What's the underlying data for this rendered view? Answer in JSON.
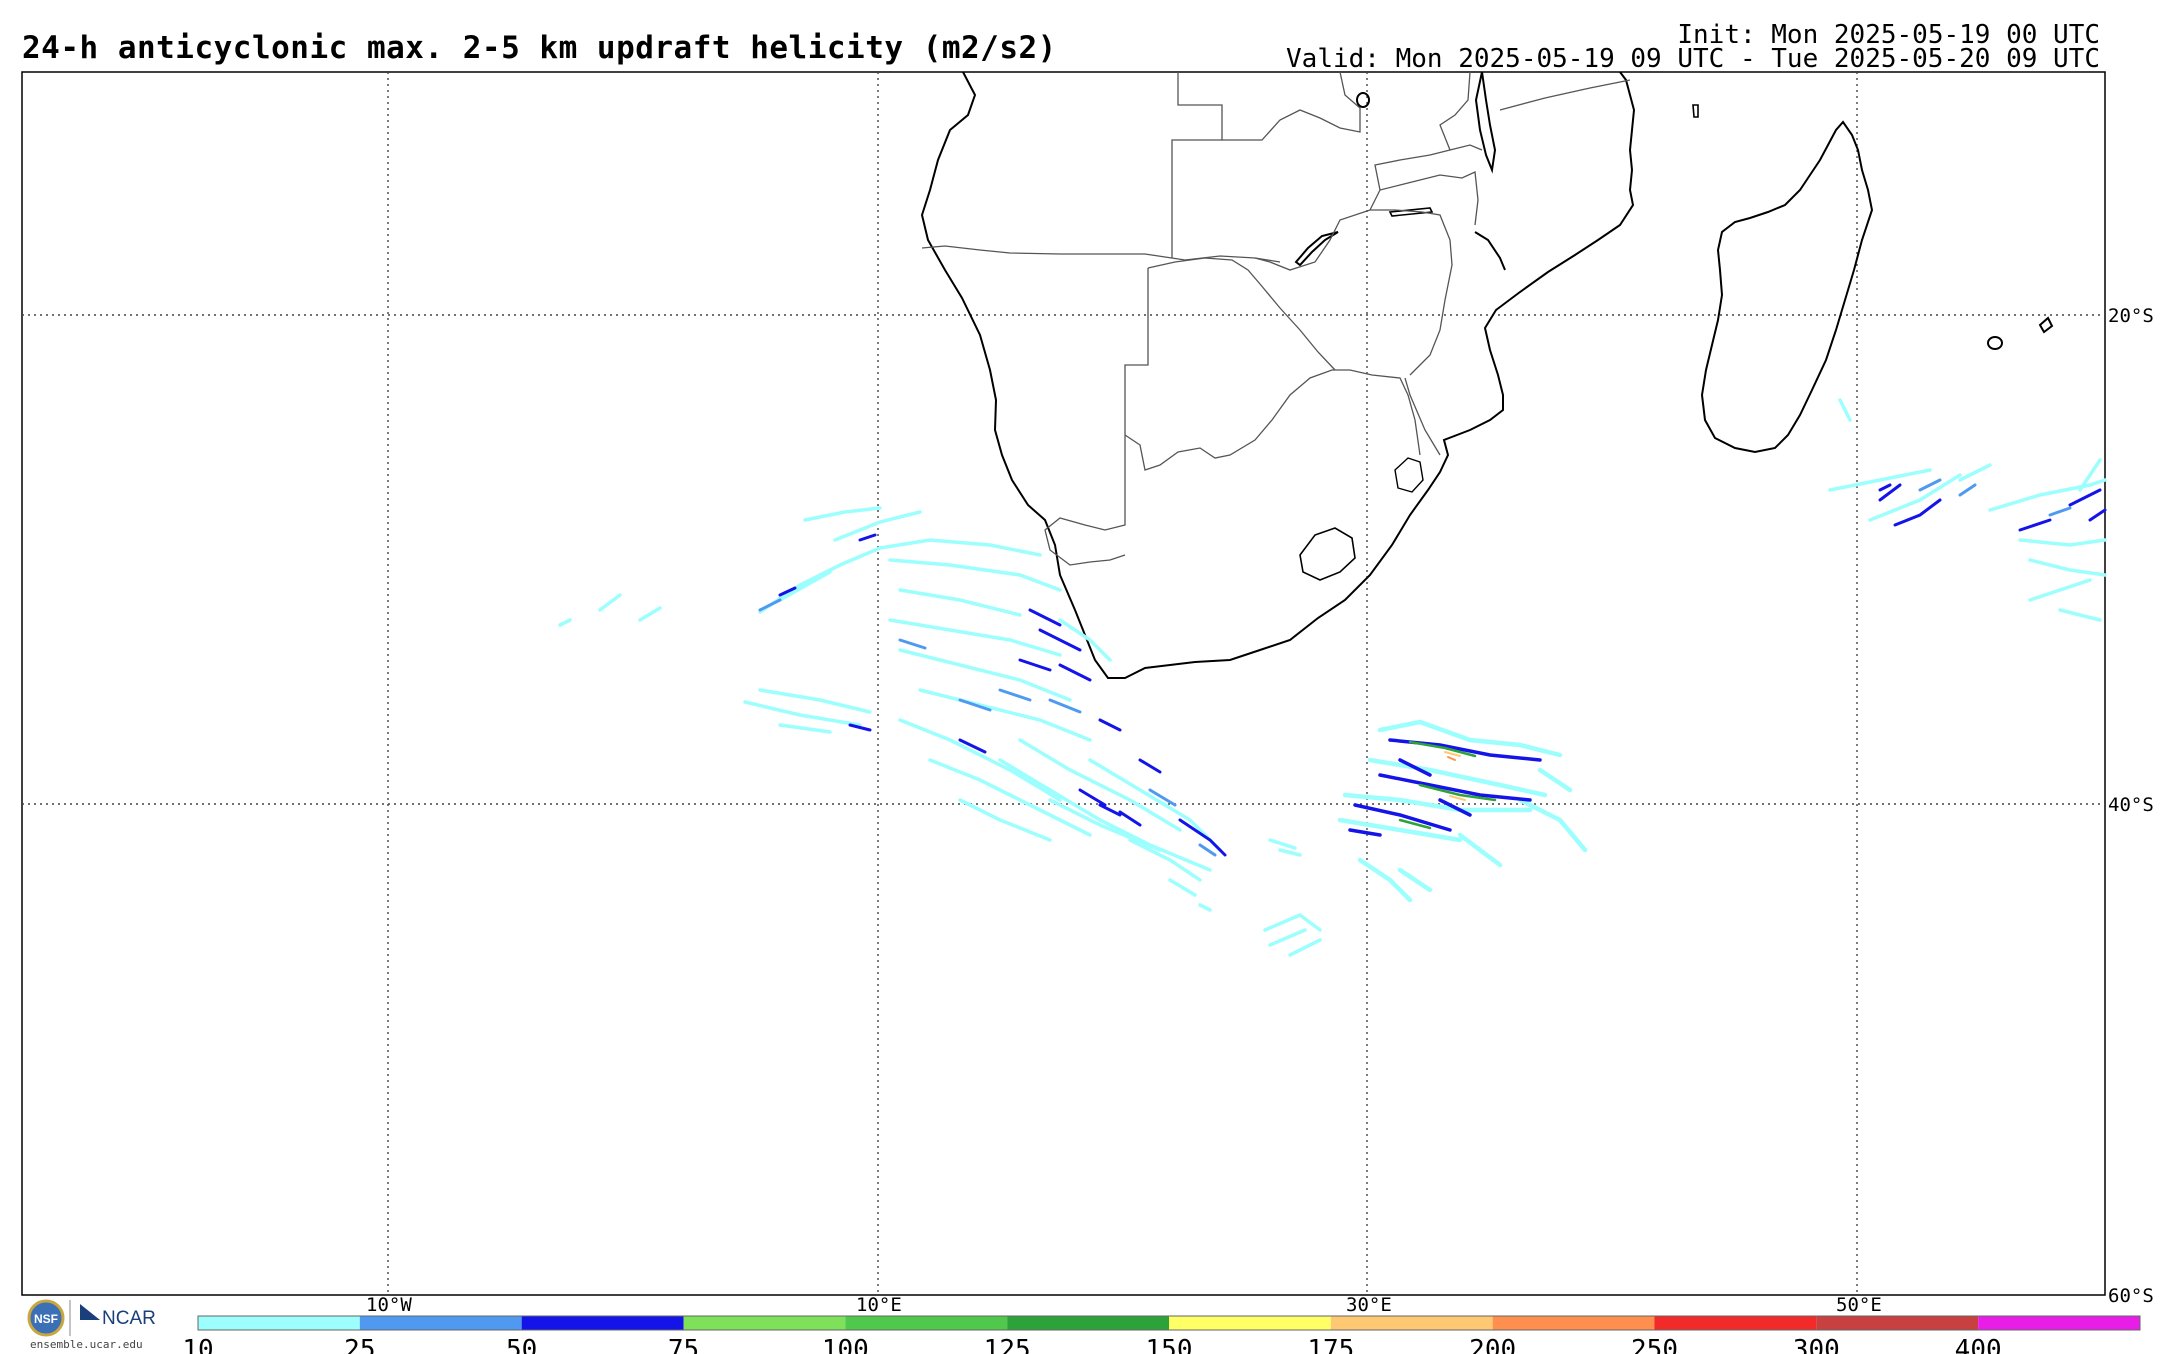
{
  "header": {
    "title": "24-h anticyclonic max. 2-5 km updraft helicity (m2/s2)",
    "init": "Init: Mon 2025-05-19 00 UTC",
    "valid": "Valid: Mon 2025-05-19 09 UTC - Tue 2025-05-20 09 UTC"
  },
  "map": {
    "lon_labels": [
      "10°W",
      "10°E",
      "30°E",
      "50°E"
    ],
    "lat_labels": [
      "20°S",
      "40°S",
      "60°S"
    ]
  },
  "colorbar": {
    "labels": [
      "10",
      "25",
      "50",
      "75",
      "100",
      "125",
      "150",
      "175",
      "200",
      "250",
      "300",
      "400"
    ],
    "colors": [
      "#9cfffe",
      "#4f9af0",
      "#1414e8",
      "#7fe05a",
      "#4fc84b",
      "#2ea23a",
      "#ffff66",
      "#ffc873",
      "#ff8f4f",
      "#f22a2a",
      "#c84040",
      "#e81ee8"
    ]
  },
  "logo": {
    "org": "NCAR",
    "url_text": "ensemble.ucar.edu",
    "seal_text": "NSF"
  }
}
